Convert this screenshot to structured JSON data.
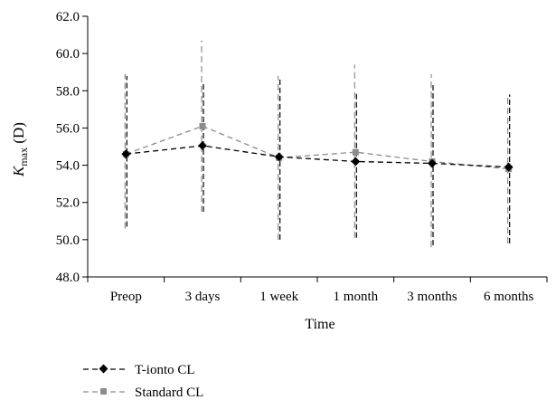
{
  "chart_data": {
    "type": "line",
    "xlabel": "Time",
    "ylabel_main": "K",
    "ylabel_sub": "max",
    "ylabel_unit": " (D)",
    "categories": [
      "Preop",
      "3 days",
      "1 week",
      "1 month",
      "3 months",
      "6 months"
    ],
    "ylim": [
      48.0,
      62.0
    ],
    "yticks": [
      "48.0",
      "50.0",
      "52.0",
      "54.0",
      "56.0",
      "58.0",
      "60.0",
      "62.0"
    ],
    "grid": false,
    "legend_position": "bottom-left",
    "series": [
      {
        "name": "T-ionto CL",
        "marker": "diamond",
        "color": "#000000",
        "values": [
          54.6,
          55.05,
          54.45,
          54.2,
          54.1,
          53.9
        ],
        "err_low": [
          50.7,
          51.5,
          50.0,
          50.1,
          49.7,
          49.8
        ],
        "err_high": [
          58.8,
          58.4,
          58.6,
          57.9,
          58.3,
          57.8
        ]
      },
      {
        "name": "Standard CL",
        "marker": "square",
        "color": "#8c8c8c",
        "values": [
          54.6,
          56.1,
          54.4,
          54.7,
          54.2,
          53.8
        ],
        "err_low": [
          50.6,
          51.5,
          50.0,
          50.1,
          49.6,
          49.8
        ],
        "err_high": [
          58.9,
          60.7,
          58.8,
          59.4,
          58.9,
          57.8
        ]
      }
    ]
  }
}
